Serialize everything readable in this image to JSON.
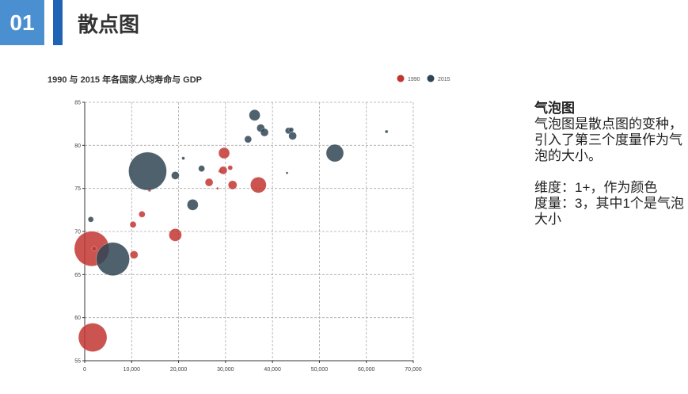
{
  "slide": {
    "number": "01",
    "title": "散点图",
    "accent_color": "#1e63b4",
    "badge_color": "#4a90d0"
  },
  "sidebar": {
    "heading": "气泡图",
    "description": "气泡图是散点图的变种，引入了第三个度量作为气泡的大小。",
    "dimension": "维度：1+，作为颜色",
    "measure": "度量：3，其中1个是气泡大小"
  },
  "chart_data": {
    "type": "scatter",
    "title": "1990 与 2015 年各国家人均寿命与 GDP",
    "xlim": [
      0,
      70000
    ],
    "ylim": [
      55,
      85
    ],
    "x_ticks": [
      0,
      10000,
      20000,
      30000,
      40000,
      50000,
      60000,
      70000
    ],
    "x_tick_labels": [
      "0",
      "10,000",
      "20,000",
      "30,000",
      "40,000",
      "50,000",
      "60,000",
      "70,000"
    ],
    "y_ticks": [
      55,
      60,
      65,
      70,
      75,
      80,
      85
    ],
    "grid": true,
    "legend_position": "top-right",
    "series": [
      {
        "name": "1990",
        "color": "#c23531",
        "points": [
          [
            1500,
            68,
            22
          ],
          [
            2000,
            68,
            3
          ],
          [
            1700,
            57.7,
            18
          ],
          [
            10500,
            67.3,
            5
          ],
          [
            10300,
            70.8,
            4
          ],
          [
            12200,
            72,
            4
          ],
          [
            13800,
            74.8,
            2
          ],
          [
            19300,
            69.6,
            8
          ],
          [
            26500,
            75.7,
            5
          ],
          [
            28300,
            75,
            1.5
          ],
          [
            28800,
            77,
            2
          ],
          [
            29500,
            77.1,
            5
          ],
          [
            29700,
            79.1,
            7
          ],
          [
            31000,
            77.4,
            3
          ],
          [
            31500,
            75.4,
            5.5
          ],
          [
            37000,
            75.4,
            10
          ]
        ]
      },
      {
        "name": "2015",
        "color": "#2f4554",
        "points": [
          [
            1300,
            71.4,
            3.5
          ],
          [
            6000,
            66.8,
            21
          ],
          [
            13400,
            77,
            24
          ],
          [
            19300,
            76.5,
            5
          ],
          [
            21000,
            78.5,
            2
          ],
          [
            23000,
            73.1,
            7
          ],
          [
            24900,
            77.3,
            4
          ],
          [
            34800,
            80.7,
            4.5
          ],
          [
            36200,
            83.5,
            7
          ],
          [
            37500,
            82,
            5
          ],
          [
            38300,
            81.5,
            5
          ],
          [
            43400,
            81.7,
            4
          ],
          [
            44300,
            81.1,
            5
          ],
          [
            44000,
            81.8,
            3
          ],
          [
            43100,
            76.8,
            1.5
          ],
          [
            53300,
            79.1,
            11
          ],
          [
            64300,
            81.6,
            2
          ]
        ]
      }
    ]
  }
}
